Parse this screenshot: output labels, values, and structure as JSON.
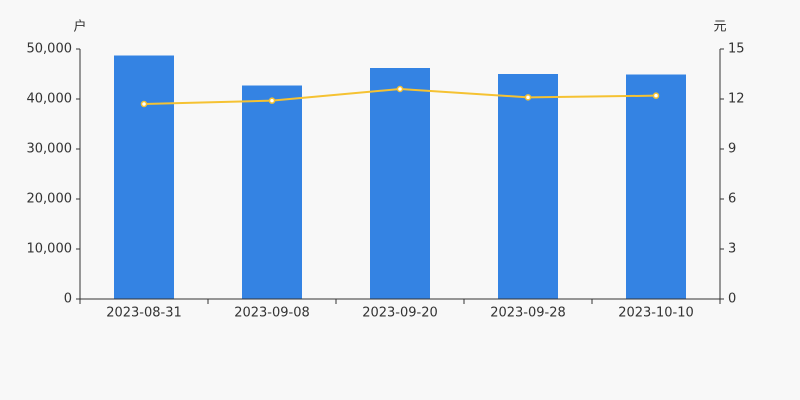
{
  "chart_data": {
    "type": "bar",
    "ylabel": "户",
    "y2label": "元",
    "categories": [
      "2023-08-31",
      "2023-09-08",
      "2023-09-20",
      "2023-09-28",
      "2023-10-10"
    ],
    "series": [
      {
        "type": "bar",
        "color": "#3483e3",
        "values": [
          48700,
          42700,
          46200,
          45000,
          44900
        ]
      },
      {
        "type": "line",
        "axis": "y2",
        "color": "#f5c232",
        "values": [
          11.7,
          11.9,
          12.6,
          12.1,
          12.2
        ]
      }
    ],
    "ylim": [
      0,
      50000
    ],
    "yticks": [
      0,
      {
        "value": 10000,
        "label": "10,000"
      },
      {
        "value": 20000,
        "label": "20,000"
      },
      {
        "value": 30000,
        "label": "30,000"
      },
      {
        "value": 40000,
        "label": "40,000"
      },
      {
        "value": 50000,
        "label": "50,000"
      }
    ],
    "y2lim": [
      0,
      15
    ],
    "y2ticks": [
      0,
      3,
      6,
      9,
      12,
      15
    ]
  }
}
